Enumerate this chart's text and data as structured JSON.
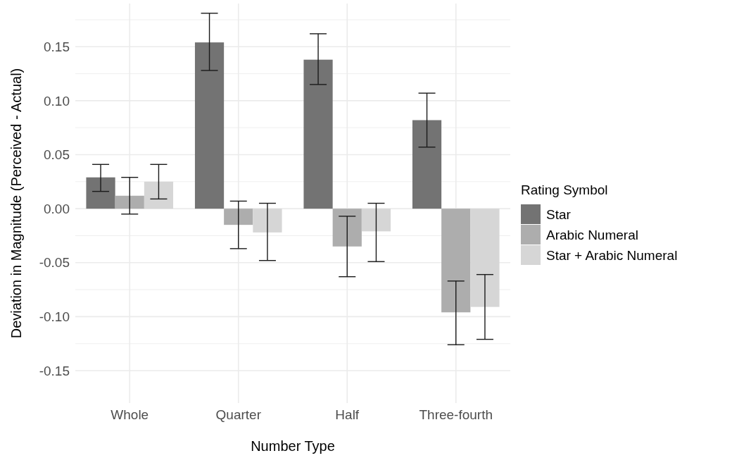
{
  "chart_data": {
    "type": "bar",
    "xlabel": "Number Type",
    "ylabel": "Deviation in Magnitude (Perceived - Actual)",
    "legend_title": "Rating Symbol",
    "categories": [
      "Whole",
      "Quarter",
      "Half",
      "Three-fourth"
    ],
    "series": [
      {
        "name": "Star",
        "color": "#737373",
        "values": [
          0.029,
          0.154,
          0.138,
          0.082
        ],
        "errors": [
          [
            0.016,
            0.041
          ],
          [
            0.128,
            0.181
          ],
          [
            0.115,
            0.162
          ],
          [
            0.057,
            0.107
          ]
        ]
      },
      {
        "name": "Arabic Numeral",
        "color": "#adadad",
        "values": [
          0.012,
          -0.015,
          -0.035,
          -0.096
        ],
        "errors": [
          [
            -0.005,
            0.029
          ],
          [
            -0.037,
            0.007
          ],
          [
            -0.063,
            -0.007
          ],
          [
            -0.126,
            -0.067
          ]
        ]
      },
      {
        "name": "Star + Arabic Numeral",
        "color": "#d6d6d6",
        "values": [
          0.025,
          -0.022,
          -0.021,
          -0.091
        ],
        "errors": [
          [
            0.009,
            0.041
          ],
          [
            -0.048,
            0.005
          ],
          [
            -0.049,
            0.005
          ],
          [
            -0.121,
            -0.061
          ]
        ]
      }
    ],
    "ylim": [
      -0.18,
      0.19
    ],
    "yticks": [
      -0.15,
      {
        "value": -0.125,
        "label": null
      },
      {
        "value": -0.1,
        "label": "-0.10"
      },
      {
        "value": -0.075,
        "label": null
      },
      -0.05,
      {
        "value": -0.025,
        "label": null
      },
      {
        "value": 0,
        "label": "0.00"
      },
      {
        "value": 0.025,
        "label": null
      },
      0.05,
      {
        "value": 0.075,
        "label": null
      },
      {
        "value": 0.1,
        "label": "0.10"
      },
      {
        "value": 0.125,
        "label": null
      },
      0.15,
      {
        "value": 0.175,
        "label": null
      }
    ],
    "grid": true,
    "legend": "right"
  }
}
